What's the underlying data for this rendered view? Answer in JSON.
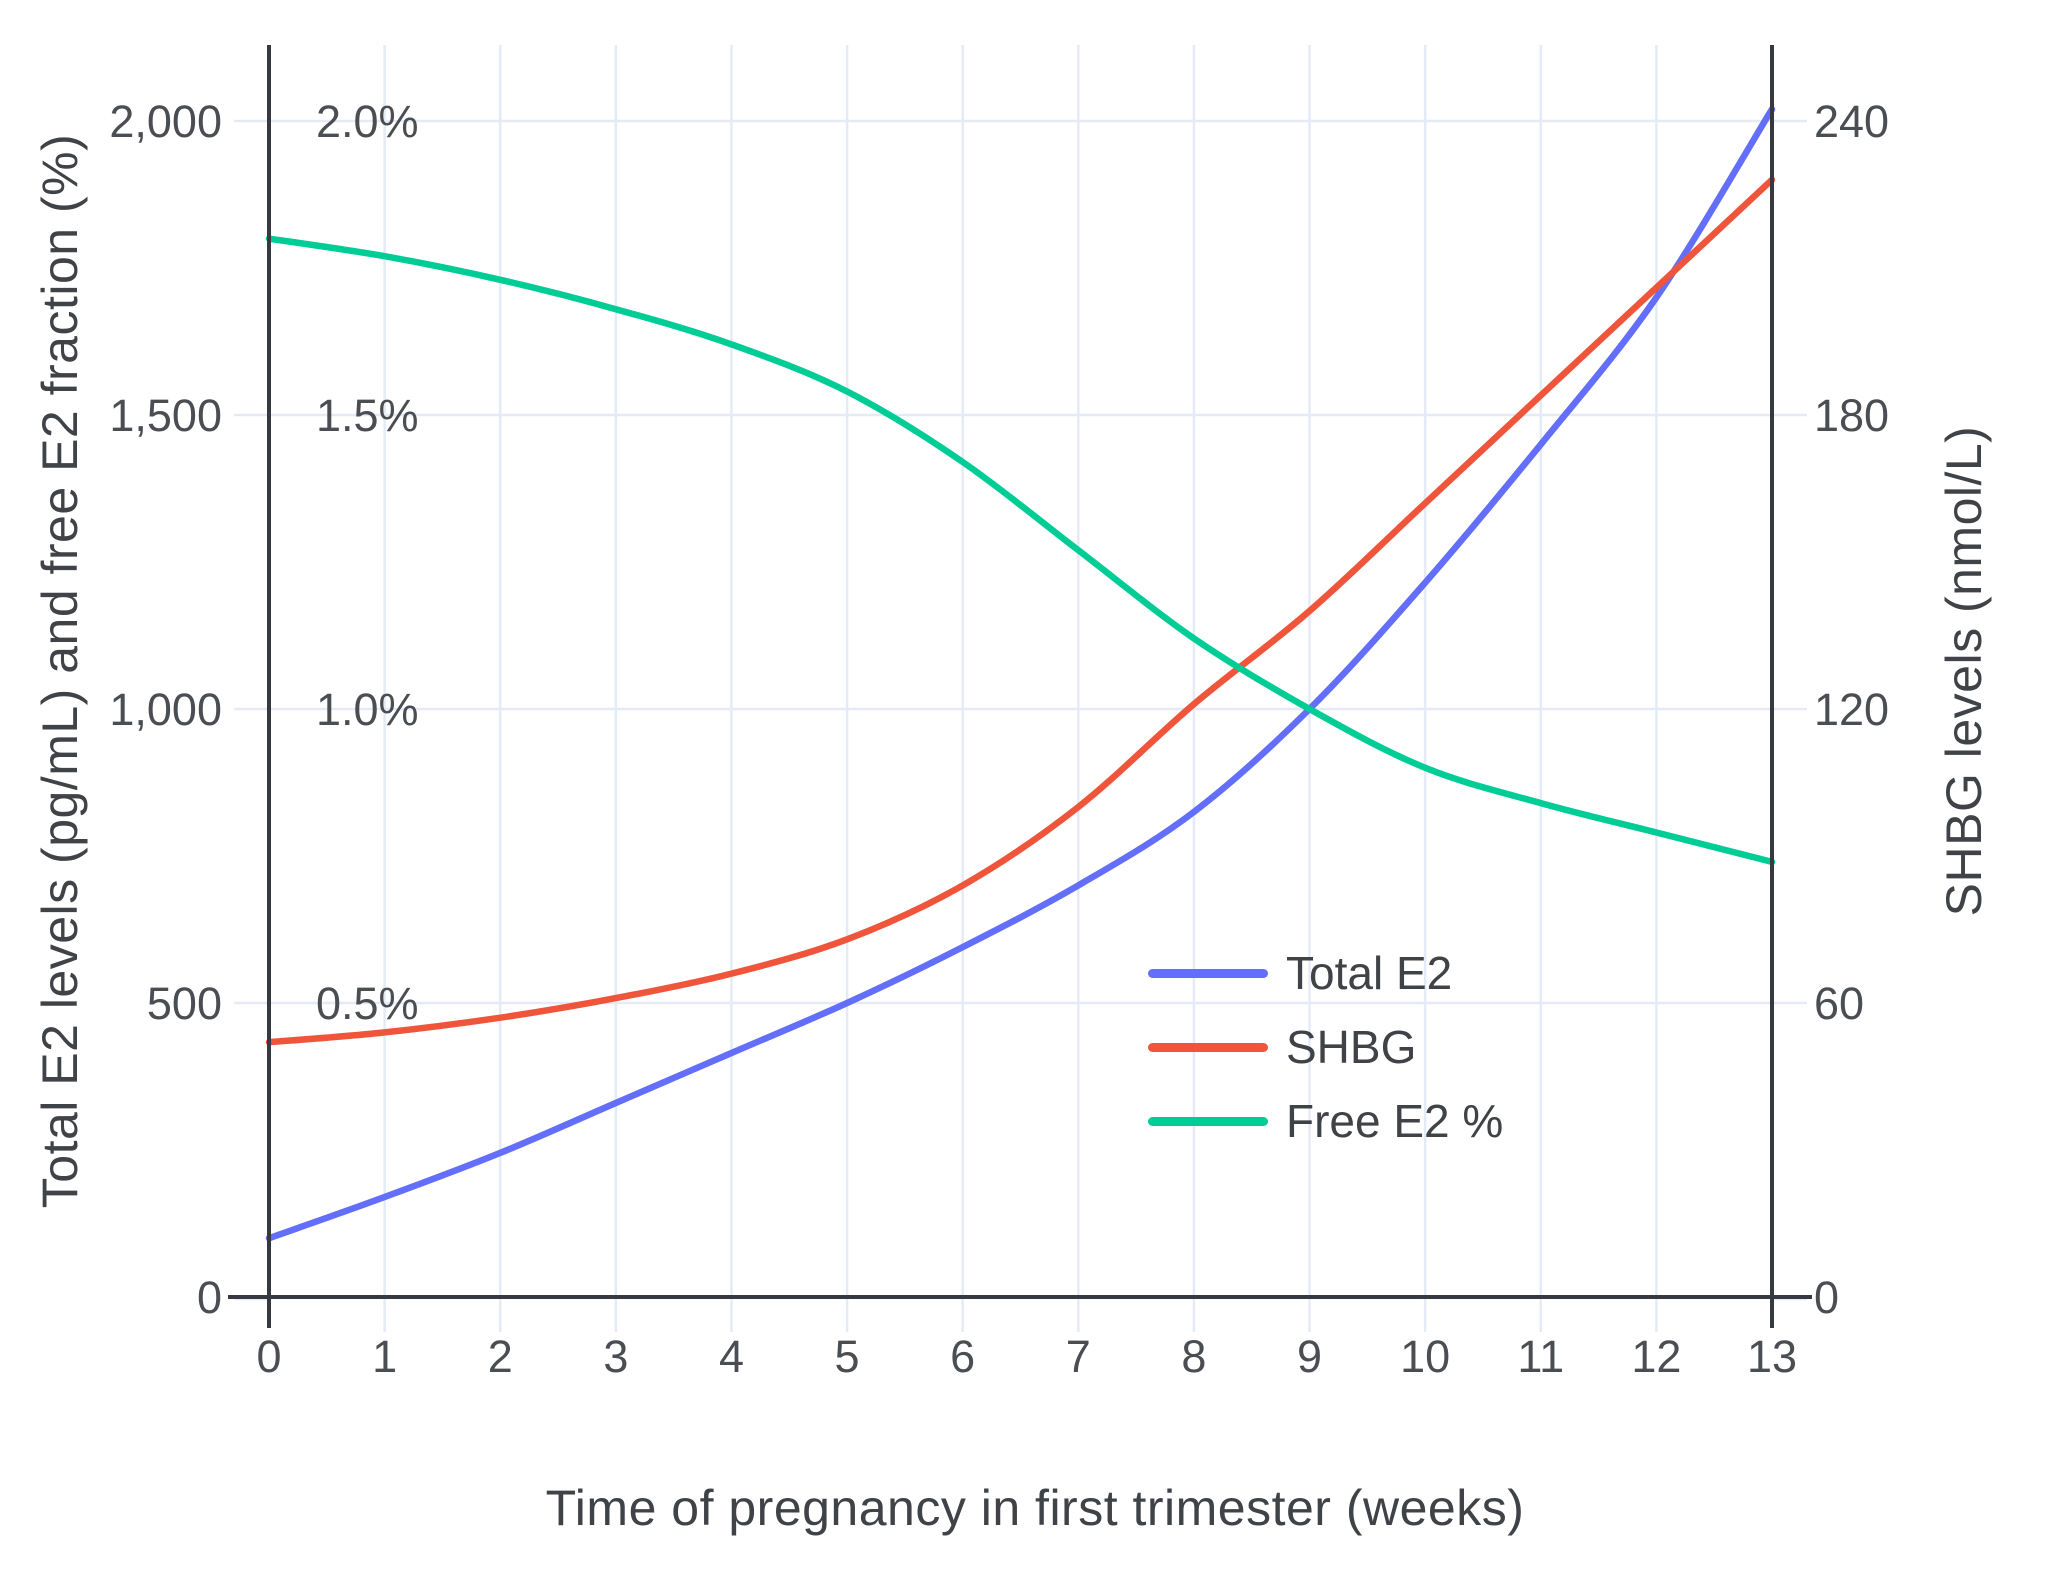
{
  "chart": {
    "x_axis": {
      "title": "Time of pregnancy in first trimester (weeks)",
      "tick_labels": [
        "0",
        "1",
        "2",
        "3",
        "4",
        "5",
        "6",
        "7",
        "8",
        "9",
        "10",
        "11",
        "12",
        "13"
      ]
    },
    "y_left_axis": {
      "title": "Total E2 levels (pg/mL) and free E2 fraction (%)",
      "tick_labels": [
        "0",
        "500",
        "1,000",
        "1,500",
        "2,000"
      ],
      "inner_percent_labels": [
        "0.5%",
        "1.0%",
        "1.5%",
        "2.0%"
      ]
    },
    "y_right_axis": {
      "title": "SHBG levels (nmol/L)",
      "tick_labels": [
        "0",
        "60",
        "120",
        "180",
        "240"
      ]
    },
    "legend": {
      "items": [
        {
          "label": "Total E2",
          "color": "#636EFA"
        },
        {
          "label": "SHBG",
          "color": "#EF553B"
        },
        {
          "label": "Free E2 %",
          "color": "#00CC96"
        }
      ]
    }
  },
  "chart_data": {
    "type": "line",
    "title": "",
    "xlabel": "Time of pregnancy in first trimester (weeks)",
    "ylabel_left": "Total E2 levels (pg/mL) and free E2 fraction (%)",
    "ylabel_right": "SHBG levels (nmol/L)",
    "x": [
      0,
      1,
      2,
      3,
      4,
      5,
      6,
      7,
      8,
      9,
      10,
      11,
      12,
      13
    ],
    "x_range": [
      0,
      13
    ],
    "grid": true,
    "legend_position": "inside-right-middle",
    "y_left": {
      "range": [
        0,
        2000
      ],
      "ticks": [
        0,
        500,
        1000,
        1500,
        2000
      ],
      "percent_overlay_ticks": [
        0.5,
        1.0,
        1.5,
        2.0
      ],
      "percent_overlay_range": [
        0,
        2.0
      ]
    },
    "y_right": {
      "range": [
        0,
        240
      ],
      "ticks": [
        0,
        60,
        120,
        180,
        240
      ]
    },
    "series": [
      {
        "name": "Total E2",
        "axis": "left",
        "unit": "pg/mL",
        "color": "#636EFA",
        "values": [
          100,
          170,
          245,
          330,
          415,
          500,
          595,
          700,
          825,
          1000,
          1215,
          1450,
          1700,
          2020
        ]
      },
      {
        "name": "SHBG",
        "axis": "right",
        "unit": "nmol/L",
        "color": "#EF553B",
        "values": [
          52,
          54,
          57,
          61,
          66,
          73,
          84,
          100,
          121,
          140,
          162,
          184,
          206,
          228
        ]
      },
      {
        "name": "Free E2 %",
        "axis": "left-percent",
        "unit": "%",
        "color": "#00CC96",
        "values": [
          1.8,
          1.77,
          1.73,
          1.68,
          1.62,
          1.54,
          1.42,
          1.27,
          1.12,
          1.0,
          0.9,
          0.84,
          0.79,
          0.74
        ]
      }
    ]
  },
  "colors": {
    "grid": "#E5EBF6",
    "axis": "#36393F",
    "tick_text": "#4A4E53",
    "title_text": "#3F4246",
    "background": "#FFFFFF"
  }
}
